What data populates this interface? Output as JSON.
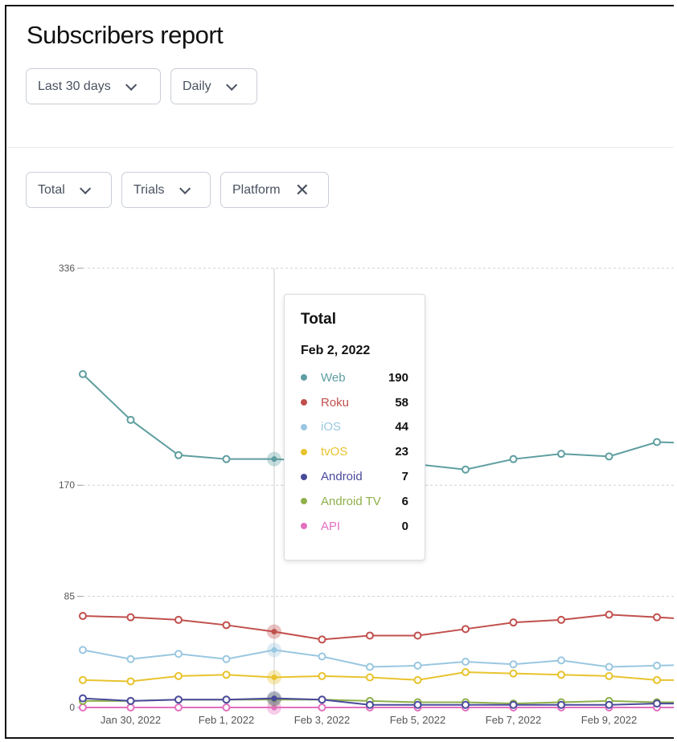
{
  "header": {
    "title": "Subscribers report"
  },
  "controls": {
    "range": "Last 30 days",
    "interval": "Daily"
  },
  "filters": {
    "metric": "Total",
    "type": "Trials",
    "segment": "Platform"
  },
  "tooltip": {
    "title": "Total",
    "date": "Feb 2, 2022",
    "rows": [
      {
        "name": "Web",
        "value": "190"
      },
      {
        "name": "Roku",
        "value": "58"
      },
      {
        "name": "iOS",
        "value": "44"
      },
      {
        "name": "tvOS",
        "value": "23"
      },
      {
        "name": "Android",
        "value": "7"
      },
      {
        "name": "Android TV",
        "value": "6"
      },
      {
        "name": "API",
        "value": "0"
      }
    ]
  },
  "chart_data": {
    "type": "line",
    "x": [
      "Jan 29, 2022",
      "Jan 30, 2022",
      "Jan 31, 2022",
      "Feb 1, 2022",
      "Feb 2, 2022",
      "Feb 3, 2022",
      "Feb 4, 2022",
      "Feb 5, 2022",
      "Feb 6, 2022",
      "Feb 7, 2022",
      "Feb 8, 2022",
      "Feb 9, 2022",
      "Feb 10, 2022",
      "Feb 11, 2022"
    ],
    "x_tick_labels": [
      "Jan 30, 2022",
      "Feb 1, 2022",
      "Feb 3, 2022",
      "Feb 5, 2022",
      "Feb 7, 2022",
      "Feb 9, 2022"
    ],
    "y_ticks": [
      0,
      85,
      170,
      336
    ],
    "ylim": [
      0,
      336
    ],
    "grid": "horizontal dashed",
    "highlighted_x": "Feb 2, 2022",
    "series": [
      {
        "name": "Web",
        "color": "#5f9ea0",
        "values": [
          255,
          220,
          193,
          190,
          190,
          188,
          186,
          186,
          182,
          190,
          194,
          192,
          203,
          202
        ]
      },
      {
        "name": "Roku",
        "color": "#c0504d",
        "values": [
          70,
          69,
          67,
          63,
          58,
          52,
          55,
          55,
          60,
          65,
          67,
          71,
          69,
          67
        ]
      },
      {
        "name": "iOS",
        "color": "#9ac7e0",
        "values": [
          44,
          37,
          41,
          37,
          44,
          39,
          31,
          32,
          35,
          33,
          36,
          31,
          32,
          33
        ]
      },
      {
        "name": "tvOS",
        "color": "#e8c32e",
        "values": [
          21,
          20,
          24,
          25,
          23,
          24,
          23,
          21,
          27,
          26,
          25,
          24,
          21,
          21
        ]
      },
      {
        "name": "Android",
        "color": "#4a4a9c",
        "values": [
          7,
          5,
          6,
          6,
          7,
          6,
          2,
          2,
          2,
          2,
          2,
          2,
          3,
          3
        ]
      },
      {
        "name": "Android TV",
        "color": "#8fb04a",
        "values": [
          5,
          5,
          6,
          6,
          6,
          6,
          5,
          4,
          4,
          3,
          4,
          5,
          4,
          4
        ]
      },
      {
        "name": "API",
        "color": "#e36fbf",
        "values": [
          0,
          0,
          0,
          0,
          0,
          0,
          0,
          0,
          0,
          0,
          0,
          0,
          0,
          0
        ]
      }
    ]
  }
}
